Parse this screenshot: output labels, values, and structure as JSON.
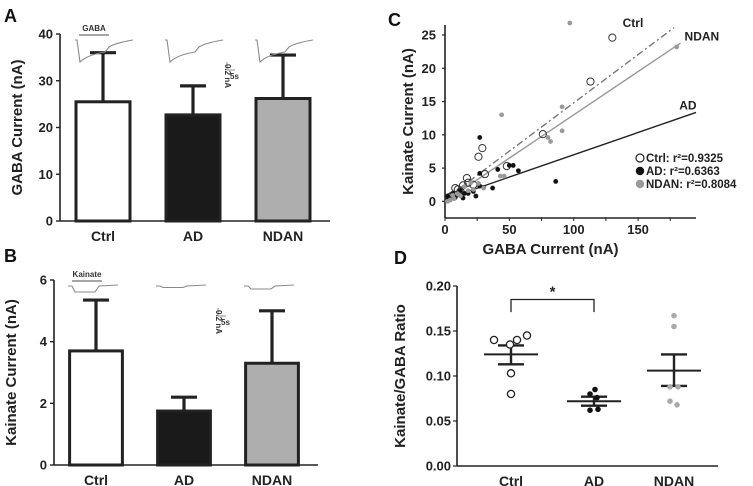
{
  "chart_data": [
    {
      "panel": "A",
      "type": "bar",
      "ylabel": "GABA Current (nA)",
      "xlabel": "",
      "categories": [
        "Ctrl",
        "AD",
        "NDAN"
      ],
      "values": [
        25.5,
        22.7,
        26.2
      ],
      "error_upper": [
        36.0,
        28.9,
        35.5
      ],
      "colors": [
        "#ffffff",
        "#1a1a1a",
        "#aeaeae"
      ],
      "ylim": [
        0,
        40
      ],
      "yticks": [
        0,
        10,
        20,
        30,
        40
      ],
      "trace_label": "GABA",
      "scale_bar": {
        "current": "0.2 nA",
        "time": "5s"
      }
    },
    {
      "panel": "B",
      "type": "bar",
      "ylabel": "Kainate Current (nA)",
      "xlabel": "",
      "categories": [
        "Ctrl",
        "AD",
        "NDAN"
      ],
      "values": [
        3.7,
        1.75,
        3.3
      ],
      "error_upper": [
        5.35,
        2.2,
        5.0
      ],
      "colors": [
        "#ffffff",
        "#1a1a1a",
        "#aeaeae"
      ],
      "ylim": [
        0,
        6
      ],
      "yticks": [
        0,
        2,
        4,
        6
      ],
      "trace_label": "Kainate",
      "scale_bar": {
        "current": "0.2 nA",
        "time": "5s"
      }
    },
    {
      "panel": "C",
      "type": "scatter",
      "xlabel": "GABA Current (nA)",
      "ylabel": "Kainate Current (nA)",
      "xlim": [
        0,
        195
      ],
      "ylim": [
        -2.5,
        26.5
      ],
      "xticks": [
        0,
        50,
        100,
        150
      ],
      "yticks": [
        0,
        5,
        10,
        15,
        20,
        25
      ],
      "legend_position": "bottom-right",
      "series": [
        {
          "name": "Ctrl",
          "legend": "Ctrl: r²=0.9325",
          "marker": "open-circle",
          "color": "#222222",
          "line": {
            "style": "dash-dot",
            "slope": 0.145,
            "intercept": 0.3,
            "x_end": 178,
            "label": "Ctrl"
          },
          "points": [
            [
              130,
              24.6
            ],
            [
              113,
              18
            ],
            [
              76,
              10.1
            ],
            [
              29,
              8
            ],
            [
              26,
              6.7
            ],
            [
              48,
              5.3
            ],
            [
              31,
              4.1
            ],
            [
              17,
              3.5
            ],
            [
              14,
              2.4
            ],
            [
              8,
              2
            ],
            [
              18,
              2.8
            ],
            [
              12,
              1.5
            ],
            [
              5,
              0.8
            ],
            [
              3,
              0.6
            ],
            [
              22,
              2.5
            ],
            [
              10,
              1.8
            ]
          ]
        },
        {
          "name": "AD",
          "legend": "AD: r²=0.6363",
          "marker": "filled-circle",
          "color": "#111111",
          "line": {
            "style": "solid",
            "slope": 0.067,
            "intercept": 0.3,
            "x_end": 195,
            "label": "AD"
          },
          "points": [
            [
              27,
              9.6
            ],
            [
              27,
              4.2
            ],
            [
              41,
              4.8
            ],
            [
              50,
              5.4
            ],
            [
              53,
              5.4
            ],
            [
              57,
              4.6
            ],
            [
              86,
              3
            ],
            [
              37,
              2
            ],
            [
              27,
              2.3
            ],
            [
              22,
              1.5
            ],
            [
              24,
              0.8
            ],
            [
              15,
              1.2
            ],
            [
              10,
              1
            ],
            [
              8,
              0.6
            ],
            [
              5,
              0.5
            ],
            [
              3,
              0.3
            ],
            [
              2,
              0.8
            ],
            [
              12,
              1.6
            ],
            [
              18,
              1.2
            ],
            [
              30,
              2.1
            ],
            [
              6,
              1.2
            ],
            [
              14,
              0.5
            ]
          ]
        },
        {
          "name": "NDAN",
          "legend": "NDAN: r²=0.8084",
          "marker": "filled-circle",
          "color": "#9a9a9a",
          "line": {
            "style": "solid",
            "slope": 0.13,
            "intercept": 0.0,
            "x_end": 183,
            "label": "NDAN"
          },
          "points": [
            [
              97,
              26.8
            ],
            [
              180,
              23.2
            ],
            [
              44,
              13
            ],
            [
              91,
              14.2
            ],
            [
              91,
              10.6
            ],
            [
              80,
              9.6
            ],
            [
              82,
              9
            ],
            [
              43,
              3.8
            ],
            [
              46,
              3.8
            ],
            [
              20,
              2.8
            ],
            [
              15,
              2.2
            ],
            [
              26,
              2.7
            ],
            [
              10,
              1.1
            ],
            [
              7,
              0.4
            ],
            [
              4,
              0.2
            ],
            [
              30,
              2
            ],
            [
              12,
              0.8
            ],
            [
              18,
              1.6
            ],
            [
              22,
              1.8
            ],
            [
              6,
              0.9
            ],
            [
              2,
              0
            ]
          ]
        }
      ]
    },
    {
      "panel": "D",
      "type": "scatter",
      "ylabel": "Kainate/GABA Ratio",
      "xlabel": "",
      "categories": [
        "Ctrl",
        "AD",
        "NDAN"
      ],
      "ylim": [
        0,
        0.2
      ],
      "yticks": [
        "0.00",
        "0.05",
        "0.10",
        "0.15",
        "0.20"
      ],
      "series": [
        {
          "name": "Ctrl",
          "marker": "open-circle",
          "color": "#222222",
          "points": [
            0.14,
            0.135,
            0.14,
            0.145,
            0.103,
            0.08
          ],
          "mean": 0.124,
          "sem_low": 0.113,
          "sem_high": 0.134
        },
        {
          "name": "AD",
          "marker": "filled-circle",
          "color": "#111111",
          "points": [
            0.085,
            0.08,
            0.076,
            0.062,
            0.063
          ],
          "mean": 0.072,
          "sem_low": 0.067,
          "sem_high": 0.077
        },
        {
          "name": "NDAN",
          "marker": "filled-circle",
          "color": "#aaaaaa",
          "points": [
            0.167,
            0.155,
            0.088,
            0.088,
            0.072,
            0.068
          ],
          "mean": 0.106,
          "sem_low": 0.089,
          "sem_high": 0.124
        }
      ],
      "significance": {
        "between": [
          "Ctrl",
          "AD"
        ],
        "label": "*"
      }
    }
  ],
  "panel_labels": [
    "A",
    "B",
    "C",
    "D"
  ]
}
